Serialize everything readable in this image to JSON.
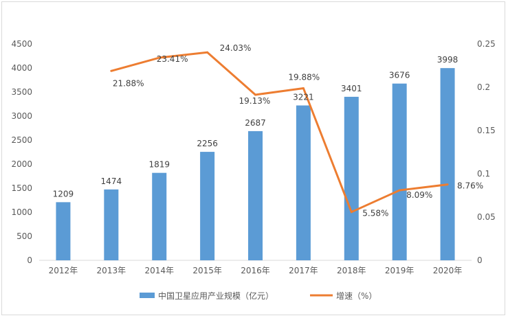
{
  "chart_data": {
    "type": "bar",
    "categories": [
      "2012年",
      "2013年",
      "2014年",
      "2015年",
      "2016年",
      "2017年",
      "2018年",
      "2019年",
      "2020年"
    ],
    "series": [
      {
        "name": "中国卫星应用产业规模（亿元）",
        "type": "bar",
        "axis": "left",
        "color": "#5B9BD5",
        "values": [
          1209,
          1474,
          1819,
          2256,
          2687,
          3221,
          3401,
          3676,
          3998
        ],
        "labels": [
          "1209",
          "1474",
          "1819",
          "2256",
          "2687",
          "3221",
          "3401",
          "3676",
          "3998"
        ]
      },
      {
        "name": "增速（%）",
        "type": "line",
        "axis": "right",
        "color": "#ED7D31",
        "values": [
          null,
          0.2188,
          0.2341,
          0.2403,
          0.1913,
          0.1988,
          0.0558,
          0.0809,
          0.0876
        ],
        "labels": [
          "",
          "21.88%",
          "23.41%",
          "24.03%",
          "19.13%",
          "19.88%",
          "5.58%",
          "8.09%",
          "8.76%"
        ]
      }
    ],
    "y_left": {
      "min": 0,
      "max": 4500,
      "ticks": [
        0,
        500,
        1000,
        1500,
        2000,
        2500,
        3000,
        3500,
        4000,
        4500
      ]
    },
    "y_right": {
      "min": 0,
      "max": 0.25,
      "ticks": [
        "0",
        "0.05",
        "0.1",
        "0.15",
        "0.2",
        "0.25"
      ]
    },
    "grid": false,
    "legend": "bottom"
  }
}
